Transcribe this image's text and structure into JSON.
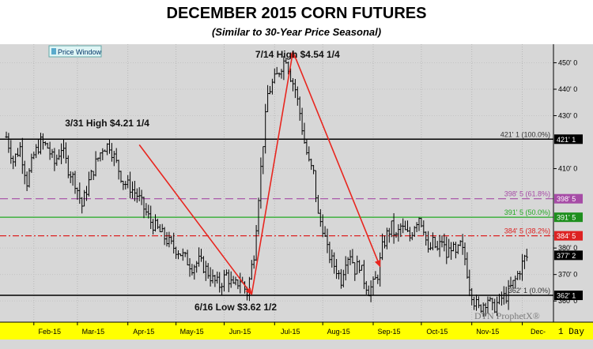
{
  "title": "DECEMBER 2015 CORN FUTURES",
  "subtitle": "(Similar to 30-Year Price Seasonal)",
  "colors": {
    "bg": "#d7d7d7",
    "axis_bg": "#ffff00",
    "trend": "#e8261f",
    "fib618": "#a64ca6",
    "fib50": "#22aa22",
    "fib382": "#dd2222",
    "bar": "#000000"
  },
  "chart_data": {
    "type": "ohlc",
    "title": "DECEMBER 2015 CORN FUTURES",
    "subtitle": "(Similar to 30-Year Price Seasonal)",
    "price_window_label": "Price Window",
    "watermark": "DTN ProphetX®",
    "interval_label": "1 Day",
    "ylim": [
      352,
      457
    ],
    "y_ticks": [
      {
        "label": "450' 0",
        "value": 450
      },
      {
        "label": "440' 0",
        "value": 440
      },
      {
        "label": "430' 0",
        "value": 430
      },
      {
        "label": "410' 0",
        "value": 410
      },
      {
        "label": "380' 0",
        "value": 380
      },
      {
        "label": "370' 0",
        "value": 370
      },
      {
        "label": "360' 0",
        "value": 360
      }
    ],
    "months": [
      {
        "label": "Feb-15",
        "t": 12
      },
      {
        "label": "Mar-15",
        "t": 31
      },
      {
        "label": "Apr-15",
        "t": 53
      },
      {
        "label": "May-15",
        "t": 74
      },
      {
        "label": "Jun-15",
        "t": 95
      },
      {
        "label": "Jul-15",
        "t": 117
      },
      {
        "label": "Aug-15",
        "t": 138
      },
      {
        "label": "Sep-15",
        "t": 160
      },
      {
        "label": "Oct-15",
        "t": 181
      },
      {
        "label": "Nov-15",
        "t": 203
      },
      {
        "label": "Dec-",
        "t": 225
      }
    ],
    "levels": [
      {
        "name": "high-level",
        "value": 421.125,
        "line_label": "421' 1 (100.0%)",
        "tag": "421' 1",
        "style": "solid",
        "color": "#000000",
        "tag_bg": "#000000",
        "tag_fg": "#ffffff"
      },
      {
        "name": "fib-618",
        "value": 398.625,
        "line_label": "398' 5 (61.8%)",
        "tag": "398' 5",
        "style": "dashed",
        "color": "#a64ca6",
        "tag_bg": "#a64ca6",
        "tag_fg": "#ffffff"
      },
      {
        "name": "fib-50",
        "value": 391.625,
        "line_label": "391' 5 (50.0%)",
        "tag": "391' 5",
        "style": "solid",
        "color": "#22aa22",
        "tag_bg": "#1e8f1e",
        "tag_fg": "#ffffff"
      },
      {
        "name": "fib-382",
        "value": 384.625,
        "line_label": "384' 5 (38.2%)",
        "tag": "384' 5",
        "style": "dashdot",
        "color": "#dd2222",
        "tag_bg": "#dd2222",
        "tag_fg": "#ffffff"
      },
      {
        "name": "low-level",
        "value": 362.125,
        "line_label": "362' 1 (0.0%)",
        "tag": "362' 1",
        "style": "solid",
        "color": "#000000",
        "tag_bg": "#000000",
        "tag_fg": "#ffffff"
      }
    ],
    "last_price": {
      "tag": "377' 2",
      "value": 377.25
    },
    "annotations": [
      {
        "text": "3/31 High $4.21 1/4",
        "t": 44,
        "y": 426
      },
      {
        "text": "7/14 High $4.54 1/4",
        "t": 127,
        "y": 452
      },
      {
        "text": "6/16 Low $3.62 1/2",
        "t": 100,
        "y": 356.5
      }
    ],
    "trend_arrows": [
      {
        "from": [
          58,
          419
        ],
        "to": [
          107,
          362.5
        ]
      },
      {
        "from": [
          107,
          362.5
        ],
        "to": [
          125,
          454.25
        ]
      },
      {
        "from": [
          125,
          454.25
        ],
        "to": [
          163,
          373
        ]
      }
    ],
    "anchors": [
      [
        0,
        422
      ],
      [
        3,
        413
      ],
      [
        6,
        418
      ],
      [
        9,
        405
      ],
      [
        12,
        415
      ],
      [
        15,
        420
      ],
      [
        18,
        418
      ],
      [
        21,
        412
      ],
      [
        24,
        418
      ],
      [
        27,
        410
      ],
      [
        30,
        405
      ],
      [
        33,
        396
      ],
      [
        36,
        405
      ],
      [
        39,
        412
      ],
      [
        42,
        418
      ],
      [
        45,
        419
      ],
      [
        48,
        412
      ],
      [
        51,
        405
      ],
      [
        54,
        403
      ],
      [
        57,
        400
      ],
      [
        60,
        395
      ],
      [
        63,
        390
      ],
      [
        66,
        387
      ],
      [
        69,
        384
      ],
      [
        72,
        381
      ],
      [
        75,
        379
      ],
      [
        78,
        376
      ],
      [
        81,
        373
      ],
      [
        84,
        375
      ],
      [
        87,
        372
      ],
      [
        90,
        368
      ],
      [
        93,
        366
      ],
      [
        96,
        370
      ],
      [
        99,
        365
      ],
      [
        102,
        368
      ],
      [
        105,
        363
      ],
      [
        108,
        378
      ],
      [
        110,
        400
      ],
      [
        112,
        420
      ],
      [
        114,
        438
      ],
      [
        116,
        442
      ],
      [
        118,
        445
      ],
      [
        120,
        449
      ],
      [
        122,
        452
      ],
      [
        124,
        445
      ],
      [
        126,
        440
      ],
      [
        128,
        431
      ],
      [
        130,
        420
      ],
      [
        132,
        412
      ],
      [
        134,
        408
      ],
      [
        136,
        392
      ],
      [
        138,
        388
      ],
      [
        140,
        379
      ],
      [
        142,
        375
      ],
      [
        144,
        372
      ],
      [
        146,
        368
      ],
      [
        148,
        376
      ],
      [
        150,
        378
      ],
      [
        152,
        372
      ],
      [
        154,
        374
      ],
      [
        156,
        368
      ],
      [
        158,
        364
      ],
      [
        160,
        366
      ],
      [
        162,
        370
      ],
      [
        164,
        380
      ],
      [
        166,
        385
      ],
      [
        168,
        388
      ],
      [
        170,
        384
      ],
      [
        172,
        388
      ],
      [
        174,
        386
      ],
      [
        176,
        384
      ],
      [
        178,
        389
      ],
      [
        180,
        392
      ],
      [
        182,
        388
      ],
      [
        184,
        378
      ],
      [
        186,
        382
      ],
      [
        188,
        379
      ],
      [
        190,
        383
      ],
      [
        192,
        377
      ],
      [
        194,
        381
      ],
      [
        196,
        377
      ],
      [
        198,
        381
      ],
      [
        200,
        376
      ],
      [
        202,
        366
      ],
      [
        204,
        360
      ],
      [
        206,
        357
      ],
      [
        208,
        359
      ],
      [
        210,
        361
      ],
      [
        212,
        357
      ],
      [
        214,
        359
      ],
      [
        216,
        361
      ],
      [
        218,
        362
      ],
      [
        220,
        365
      ],
      [
        222,
        368
      ],
      [
        224,
        372
      ],
      [
        226,
        376
      ],
      [
        228,
        377
      ]
    ]
  }
}
